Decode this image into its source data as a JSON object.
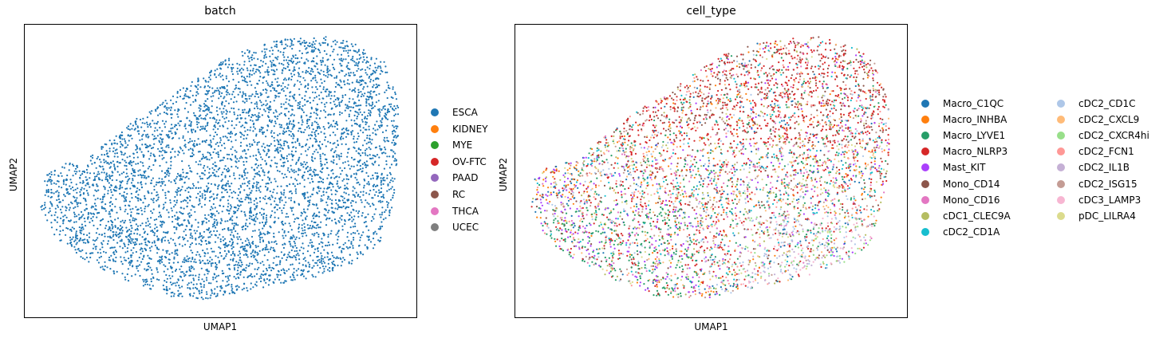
{
  "chart_data": [
    {
      "type": "scatter",
      "title": "batch",
      "xlabel": "UMAP1",
      "ylabel": "UMAP2",
      "grid": false,
      "legend_position": "right",
      "series": [
        {
          "name": "ESCA",
          "color": "#1f77b4"
        },
        {
          "name": "KIDNEY",
          "color": "#ff7f0e"
        },
        {
          "name": "MYE",
          "color": "#2ca02c"
        },
        {
          "name": "OV-FTC",
          "color": "#d62728"
        },
        {
          "name": "PAAD",
          "color": "#9467bd"
        },
        {
          "name": "RC",
          "color": "#8c564b"
        },
        {
          "name": "THCA",
          "color": "#e377c2"
        },
        {
          "name": "UCEC",
          "color": "#7f7f7f"
        }
      ],
      "colored_by": "ESCA"
    },
    {
      "type": "scatter",
      "title": "cell_type",
      "xlabel": "UMAP1",
      "ylabel": "UMAP2",
      "grid": false,
      "legend_position": "right",
      "legend_columns": 2,
      "series": [
        {
          "name": "Macro_C1QC",
          "color": "#1f77b4"
        },
        {
          "name": "Macro_INHBA",
          "color": "#ff7f0e"
        },
        {
          "name": "Macro_LYVE1",
          "color": "#279e68"
        },
        {
          "name": "Macro_NLRP3",
          "color": "#d62728"
        },
        {
          "name": "Mast_KIT",
          "color": "#aa40fc"
        },
        {
          "name": "Mono_CD14",
          "color": "#8c564b"
        },
        {
          "name": "Mono_CD16",
          "color": "#e377c2"
        },
        {
          "name": "cDC1_CLEC9A",
          "color": "#b5bd61"
        },
        {
          "name": "cDC2_CD1A",
          "color": "#17becf"
        },
        {
          "name": "cDC2_CD1C",
          "color": "#aec7e8"
        },
        {
          "name": "cDC2_CXCL9",
          "color": "#ffbb78"
        },
        {
          "name": "cDC2_CXCR4hi",
          "color": "#98df8a"
        },
        {
          "name": "cDC2_FCN1",
          "color": "#ff9896"
        },
        {
          "name": "cDC2_IL1B",
          "color": "#c5b0d5"
        },
        {
          "name": "cDC2_ISG15",
          "color": "#c49c94"
        },
        {
          "name": "cDC3_LAMP3",
          "color": "#f7b6d2"
        },
        {
          "name": "pDC_LILRA4",
          "color": "#dbdb8d"
        }
      ]
    }
  ]
}
